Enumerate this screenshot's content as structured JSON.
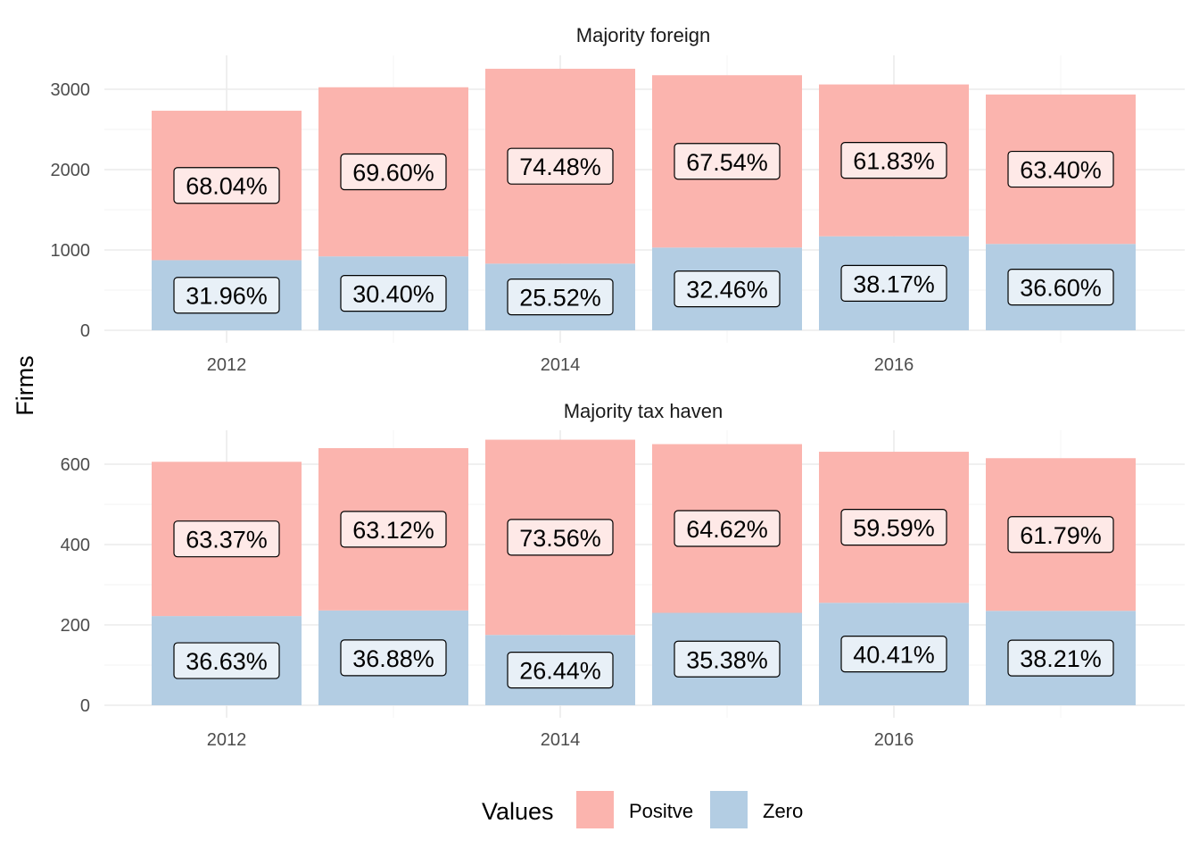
{
  "chart_data": {
    "type": "bar",
    "stacked": true,
    "ylabel": "Firms",
    "xlabel": "",
    "x": [
      2012,
      2013,
      2014,
      2015,
      2016,
      2017
    ],
    "x_tick_labels": [
      "2012",
      "2014",
      "2016"
    ],
    "legend": {
      "title": "Values",
      "placement": "bottom",
      "entries": [
        {
          "name": "Positve",
          "color": "#FBB4AE"
        },
        {
          "name": "Zero",
          "color": "#B3CDE3"
        }
      ]
    },
    "grid": true,
    "panels": [
      {
        "title": "Majority foreign",
        "ylim": [
          0,
          3250
        ],
        "y_ticks": [
          0,
          1000,
          2000,
          3000
        ],
        "y_tick_labels": [
          "0",
          "1000",
          "2000",
          "3000"
        ],
        "series": [
          {
            "name": "Zero",
            "values": [
              873,
              920,
              830,
              1030,
              1170,
              1075
            ],
            "labels": [
              "31.96%",
              "30.40%",
              "25.52%",
              "32.46%",
              "38.17%",
              "36.60%"
            ]
          },
          {
            "name": "Positve",
            "values": [
              1860,
              2105,
              2425,
              2145,
              1890,
              1860
            ],
            "labels": [
              "68.04%",
              "69.60%",
              "74.48%",
              "67.54%",
              "61.83%",
              "63.40%"
            ]
          }
        ]
      },
      {
        "title": "Majority tax haven",
        "ylim": [
          0,
          660
        ],
        "y_ticks": [
          0,
          200,
          400,
          600
        ],
        "y_tick_labels": [
          "0",
          "200",
          "400",
          "600"
        ],
        "series": [
          {
            "name": "Zero",
            "values": [
              222,
              236,
              175,
              230,
              255,
              235
            ],
            "labels": [
              "36.63%",
              "36.88%",
              "26.44%",
              "35.38%",
              "40.41%",
              "38.21%"
            ]
          },
          {
            "name": "Positve",
            "values": [
              384,
              404,
              486,
              420,
              376,
              380
            ],
            "labels": [
              "63.37%",
              "63.12%",
              "73.56%",
              "64.62%",
              "59.59%",
              "61.79%"
            ]
          }
        ]
      }
    ]
  }
}
